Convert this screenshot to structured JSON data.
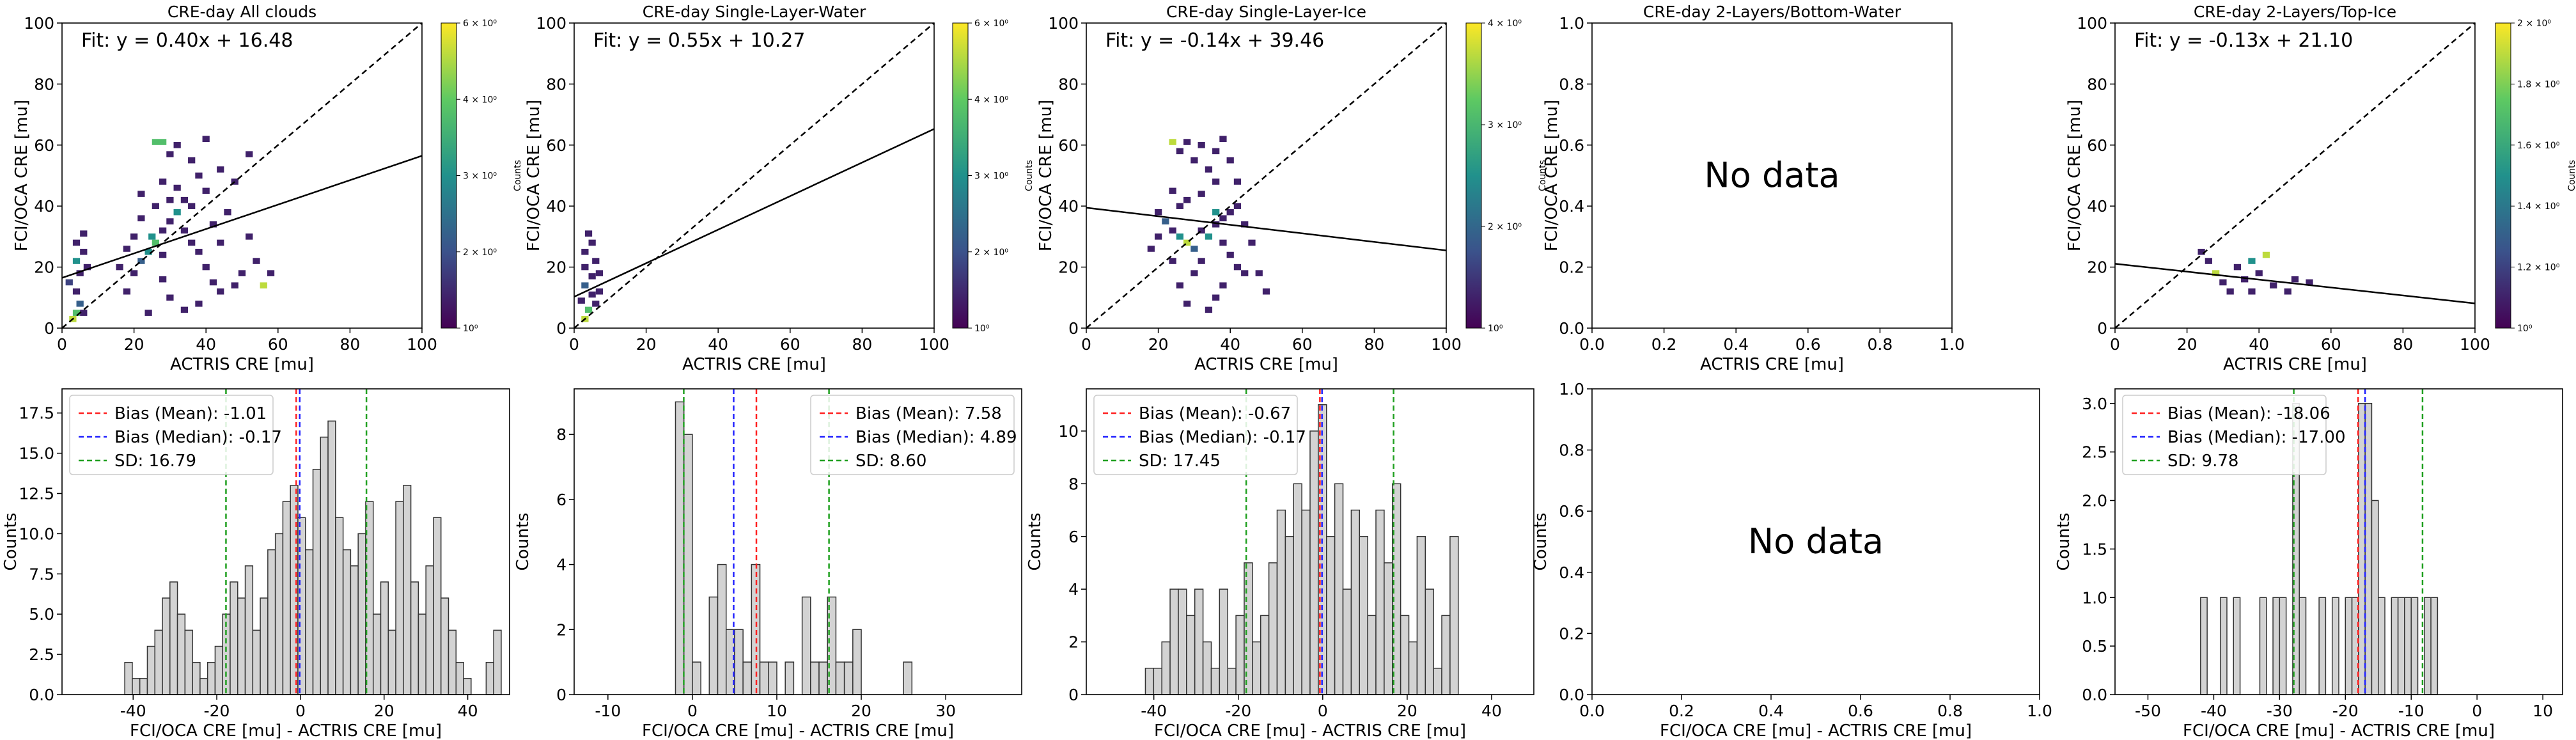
{
  "figure": {
    "top_panels": [
      {
        "title": "CRE-day All clouds",
        "fit": "Fit: y = 0.40x + 16.48",
        "xlabel": "ACTRIS CRE [mu]",
        "ylabel": "FCI/OCA CRE [mu]",
        "colorbar_label": "Counts",
        "colorbar_ticks": [
          "10⁰",
          "2 × 10⁰",
          "3 × 10⁰",
          "4 × 10⁰",
          "6 × 10⁰"
        ],
        "no_data": ""
      },
      {
        "title": "CRE-day Single-Layer-Water",
        "fit": "Fit: y = 0.55x + 10.27",
        "xlabel": "ACTRIS CRE [mu]",
        "ylabel": "FCI/OCA CRE [mu]",
        "colorbar_label": "Counts",
        "colorbar_ticks": [
          "10⁰",
          "2 × 10⁰",
          "3 × 10⁰",
          "4 × 10⁰",
          "6 × 10⁰"
        ],
        "no_data": ""
      },
      {
        "title": "CRE-day Single-Layer-Ice",
        "fit": "Fit: y = -0.14x + 39.46",
        "xlabel": "ACTRIS CRE [mu]",
        "ylabel": "FCI/OCA CRE [mu]",
        "colorbar_label": "Counts",
        "colorbar_ticks": [
          "10⁰",
          "2 × 10⁰",
          "3 × 10⁰",
          "4 × 10⁰"
        ],
        "no_data": ""
      },
      {
        "title": "CRE-day 2-Layers/Bottom-Water",
        "fit": "",
        "xlabel": "ACTRIS CRE [mu]",
        "ylabel": "FCI/OCA CRE [mu]",
        "colorbar_label": "",
        "colorbar_ticks": [],
        "no_data": "No data"
      },
      {
        "title": "CRE-day 2-Layers/Top-Ice",
        "fit": "Fit: y = -0.13x + 21.10",
        "xlabel": "ACTRIS CRE [mu]",
        "ylabel": "FCI/OCA CRE [mu]",
        "colorbar_label": "Counts",
        "colorbar_ticks": [
          "10⁰",
          "1.2 × 10⁰",
          "1.4 × 10⁰",
          "1.6 × 10⁰",
          "1.8 × 10⁰",
          "2 × 10⁰"
        ],
        "no_data": ""
      }
    ],
    "bottom_panels": [
      {
        "xlabel": "FCI/OCA CRE [mu] - ACTRIS CRE [mu]",
        "ylabel": "Counts",
        "legend": [
          "Bias (Mean): -1.01",
          "Bias (Median): -0.17",
          "SD: 16.79"
        ],
        "no_data": ""
      },
      {
        "xlabel": "FCI/OCA CRE [mu] - ACTRIS CRE [mu]",
        "ylabel": "Counts",
        "legend": [
          "Bias (Mean): 7.58",
          "Bias (Median): 4.89",
          "SD: 8.60"
        ],
        "no_data": ""
      },
      {
        "xlabel": "FCI/OCA CRE [mu] - ACTRIS CRE [mu]",
        "ylabel": "Counts",
        "legend": [
          "Bias (Mean): -0.67",
          "Bias (Median): -0.17",
          "SD: 17.45"
        ],
        "no_data": ""
      },
      {
        "xlabel": "FCI/OCA CRE [mu] - ACTRIS CRE [mu]",
        "ylabel": "Counts",
        "legend": [],
        "no_data": "No data"
      },
      {
        "xlabel": "FCI/OCA CRE [mu] - ACTRIS CRE [mu]",
        "ylabel": "Counts",
        "legend": [
          "Bias (Mean): -18.06",
          "Bias (Median): -17.00",
          "SD: 9.78"
        ],
        "no_data": ""
      }
    ]
  },
  "colors": {
    "mean_line": "#ff2020",
    "median_line": "#2020ff",
    "sd_line": "#20a020",
    "bar_fill": "#d3d3d3",
    "bar_edge": "#333333",
    "viridis": [
      "#440154",
      "#3b528b",
      "#21918c",
      "#5ec962",
      "#fde725"
    ]
  },
  "chart_data": [
    {
      "type": "heatmap",
      "title": "CRE-day All clouds",
      "xlim": [
        0,
        100
      ],
      "ylim": [
        0,
        100
      ],
      "xticks": [
        0,
        20,
        40,
        60,
        80,
        100
      ],
      "yticks": [
        0,
        20,
        40,
        60,
        80,
        100
      ],
      "fit": {
        "slope": 0.4,
        "intercept": 16.48
      },
      "one_to_one": true,
      "cells": [
        [
          3,
          3,
          0.9
        ],
        [
          4,
          5,
          0.7
        ],
        [
          5,
          8,
          0.3
        ],
        [
          6,
          5,
          0.1
        ],
        [
          4,
          12,
          0.1
        ],
        [
          2,
          15,
          0.2
        ],
        [
          5,
          18,
          0.1
        ],
        [
          7,
          20,
          0.1
        ],
        [
          4,
          22,
          0.5
        ],
        [
          6,
          25,
          0.1
        ],
        [
          4,
          28,
          0.1
        ],
        [
          6,
          31,
          0.1
        ],
        [
          18,
          12,
          0.1
        ],
        [
          20,
          18,
          0.1
        ],
        [
          22,
          22,
          0.3
        ],
        [
          24,
          25,
          0.5
        ],
        [
          26,
          28,
          0.7
        ],
        [
          28,
          24,
          0.1
        ],
        [
          25,
          30,
          0.5
        ],
        [
          28,
          32,
          0.1
        ],
        [
          30,
          35,
          0.1
        ],
        [
          32,
          38,
          0.5
        ],
        [
          34,
          42,
          0.1
        ],
        [
          36,
          40,
          0.1
        ],
        [
          34,
          32,
          0.1
        ],
        [
          36,
          28,
          0.1
        ],
        [
          38,
          25,
          0.1
        ],
        [
          40,
          20,
          0.1
        ],
        [
          42,
          15,
          0.1
        ],
        [
          44,
          12,
          0.1
        ],
        [
          40,
          45,
          0.1
        ],
        [
          38,
          50,
          0.1
        ],
        [
          36,
          55,
          0.1
        ],
        [
          32,
          60,
          0.1
        ],
        [
          26,
          61,
          0.7
        ],
        [
          28,
          61,
          0.7
        ],
        [
          30,
          57,
          0.1
        ],
        [
          40,
          62,
          0.1
        ],
        [
          44,
          52,
          0.1
        ],
        [
          48,
          48,
          0.1
        ],
        [
          46,
          38,
          0.1
        ],
        [
          42,
          34,
          0.1
        ],
        [
          52,
          30,
          0.1
        ],
        [
          54,
          22,
          0.1
        ],
        [
          50,
          18,
          0.1
        ],
        [
          48,
          14,
          0.1
        ],
        [
          56,
          14,
          0.9
        ],
        [
          58,
          18,
          0.1
        ],
        [
          44,
          28,
          0.1
        ],
        [
          30,
          42,
          0.1
        ],
        [
          32,
          46,
          0.1
        ],
        [
          28,
          48,
          0.1
        ],
        [
          26,
          40,
          0.1
        ],
        [
          22,
          36,
          0.1
        ],
        [
          20,
          30,
          0.1
        ],
        [
          18,
          26,
          0.1
        ],
        [
          16,
          20,
          0.1
        ],
        [
          28,
          16,
          0.1
        ],
        [
          30,
          10,
          0.1
        ],
        [
          34,
          6,
          0.1
        ],
        [
          38,
          8,
          0.1
        ],
        [
          24,
          5,
          0.1
        ],
        [
          52,
          57,
          0.1
        ],
        [
          22,
          44,
          0.1
        ]
      ]
    },
    {
      "type": "heatmap",
      "title": "CRE-day Single-Layer-Water",
      "xlim": [
        0,
        100
      ],
      "ylim": [
        0,
        100
      ],
      "xticks": [
        0,
        20,
        40,
        60,
        80,
        100
      ],
      "yticks": [
        0,
        20,
        40,
        60,
        80,
        100
      ],
      "fit": {
        "slope": 0.55,
        "intercept": 10.27
      },
      "one_to_one": true,
      "cells": [
        [
          3,
          3,
          0.9
        ],
        [
          4,
          6,
          0.7
        ],
        [
          6,
          8,
          0.1
        ],
        [
          5,
          11,
          0.1
        ],
        [
          3,
          14,
          0.3
        ],
        [
          5,
          17,
          0.1
        ],
        [
          3,
          20,
          0.1
        ],
        [
          6,
          22,
          0.1
        ],
        [
          3,
          25,
          0.1
        ],
        [
          5,
          28,
          0.1
        ],
        [
          4,
          31,
          0.1
        ],
        [
          7,
          12,
          0.1
        ],
        [
          2,
          9,
          0.1
        ],
        [
          7,
          18,
          0.1
        ]
      ]
    },
    {
      "type": "heatmap",
      "title": "CRE-day Single-Layer-Ice",
      "xlim": [
        0,
        100
      ],
      "ylim": [
        0,
        100
      ],
      "xticks": [
        0,
        20,
        40,
        60,
        80,
        100
      ],
      "yticks": [
        0,
        20,
        40,
        60,
        80,
        100
      ],
      "fit": {
        "slope": -0.14,
        "intercept": 39.46
      },
      "one_to_one": true,
      "cells": [
        [
          24,
          61,
          0.9
        ],
        [
          26,
          58,
          0.1
        ],
        [
          28,
          61,
          0.1
        ],
        [
          30,
          55,
          0.1
        ],
        [
          32,
          60,
          0.1
        ],
        [
          34,
          52,
          0.1
        ],
        [
          36,
          58,
          0.1
        ],
        [
          38,
          62,
          0.1
        ],
        [
          40,
          55,
          0.1
        ],
        [
          42,
          48,
          0.1
        ],
        [
          36,
          48,
          0.1
        ],
        [
          24,
          45,
          0.1
        ],
        [
          26,
          40,
          0.1
        ],
        [
          20,
          38,
          0.1
        ],
        [
          22,
          35,
          0.3
        ],
        [
          24,
          32,
          0.1
        ],
        [
          26,
          30,
          0.5
        ],
        [
          28,
          28,
          0.9
        ],
        [
          30,
          26,
          0.3
        ],
        [
          32,
          32,
          0.1
        ],
        [
          34,
          30,
          0.5
        ],
        [
          36,
          34,
          0.1
        ],
        [
          38,
          36,
          0.1
        ],
        [
          40,
          38,
          0.1
        ],
        [
          36,
          38,
          0.5
        ],
        [
          38,
          28,
          0.1
        ],
        [
          40,
          24,
          0.1
        ],
        [
          42,
          20,
          0.1
        ],
        [
          44,
          18,
          0.1
        ],
        [
          32,
          22,
          0.1
        ],
        [
          30,
          18,
          0.1
        ],
        [
          26,
          14,
          0.1
        ],
        [
          28,
          8,
          0.1
        ],
        [
          34,
          6,
          0.1
        ],
        [
          36,
          10,
          0.1
        ],
        [
          38,
          14,
          0.1
        ],
        [
          48,
          18,
          0.1
        ],
        [
          50,
          12,
          0.1
        ],
        [
          46,
          28,
          0.1
        ],
        [
          44,
          34,
          0.1
        ],
        [
          28,
          42,
          0.1
        ],
        [
          20,
          30,
          0.1
        ],
        [
          18,
          26,
          0.1
        ],
        [
          24,
          22,
          0.1
        ],
        [
          42,
          40,
          0.1
        ],
        [
          32,
          44,
          0.1
        ]
      ]
    },
    {
      "type": "heatmap",
      "title": "CRE-day 2-Layers/Bottom-Water",
      "xlim": [
        0,
        1
      ],
      "ylim": [
        0,
        1
      ],
      "xticks": [
        0.0,
        0.2,
        0.4,
        0.6,
        0.8,
        1.0
      ],
      "yticks": [
        0.0,
        0.2,
        0.4,
        0.6,
        0.8,
        1.0
      ],
      "no_data": true
    },
    {
      "type": "heatmap",
      "title": "CRE-day 2-Layers/Top-Ice",
      "xlim": [
        0,
        100
      ],
      "ylim": [
        0,
        100
      ],
      "xticks": [
        0,
        20,
        40,
        60,
        80,
        100
      ],
      "yticks": [
        0,
        20,
        40,
        60,
        80,
        100
      ],
      "fit": {
        "slope": -0.13,
        "intercept": 21.1
      },
      "one_to_one": true,
      "cells": [
        [
          24,
          25,
          0.1
        ],
        [
          26,
          22,
          0.1
        ],
        [
          28,
          18,
          0.9
        ],
        [
          30,
          15,
          0.1
        ],
        [
          32,
          12,
          0.1
        ],
        [
          34,
          20,
          0.1
        ],
        [
          36,
          16,
          0.1
        ],
        [
          38,
          22,
          0.5
        ],
        [
          40,
          18,
          0.1
        ],
        [
          42,
          24,
          0.9
        ],
        [
          44,
          14,
          0.1
        ],
        [
          48,
          12,
          0.1
        ],
        [
          50,
          16,
          0.1
        ],
        [
          54,
          15,
          0.1
        ],
        [
          38,
          12,
          0.1
        ]
      ]
    },
    {
      "type": "bar",
      "xlim": [
        -57,
        50
      ],
      "ylim": [
        0,
        19
      ],
      "xticks": [
        -40,
        -20,
        0,
        20,
        40
      ],
      "yticks": [
        0,
        2.5,
        5.0,
        7.5,
        10.0,
        12.5,
        15.0,
        17.5
      ],
      "ytick_labels": [
        "0.0",
        "2.5",
        "5.0",
        "7.5",
        "10.0",
        "12.5",
        "15.0",
        "17.5"
      ],
      "bin_start": -42,
      "bin_width": 1.8,
      "values": [
        2,
        1,
        1,
        3,
        4,
        6,
        7,
        5,
        4,
        2,
        1,
        2,
        3,
        5,
        7,
        6,
        8,
        4,
        6,
        9,
        10,
        12,
        13,
        11,
        9,
        14,
        16,
        17,
        11,
        9,
        8,
        10,
        12,
        5,
        7,
        4,
        12,
        13,
        7,
        5,
        8,
        11,
        6,
        4,
        2,
        1,
        0,
        0,
        2,
        4
      ],
      "lines": {
        "mean": -1.01,
        "median": -0.17,
        "sd_lo": -17.8,
        "sd_hi": 15.78
      }
    },
    {
      "type": "bar",
      "xlim": [
        -14,
        39
      ],
      "ylim": [
        0,
        9.4
      ],
      "xticks": [
        -10,
        0,
        10,
        20,
        30
      ],
      "yticks": [
        0,
        2,
        4,
        6,
        8
      ],
      "ytick_labels": [
        "0",
        "2",
        "4",
        "6",
        "8"
      ],
      "bin_start": -2,
      "bin_width": 1.0,
      "values": [
        9,
        8,
        1,
        0,
        3,
        4,
        2,
        2,
        1,
        4,
        1,
        1,
        0,
        1,
        0,
        3,
        1,
        1,
        3,
        1,
        1,
        2,
        0,
        0,
        0,
        0,
        0,
        1,
        0
      ],
      "lines": {
        "mean": 7.58,
        "median": 4.89,
        "sd_lo": -1.02,
        "sd_hi": 16.18
      }
    },
    {
      "type": "bar",
      "xlim": [
        -56,
        50
      ],
      "ylim": [
        0,
        11.6
      ],
      "xticks": [
        -40,
        -20,
        0,
        20,
        40
      ],
      "yticks": [
        0,
        2,
        4,
        6,
        8,
        10
      ],
      "ytick_labels": [
        "0",
        "2",
        "4",
        "6",
        "8",
        "10"
      ],
      "bin_start": -42,
      "bin_width": 1.95,
      "values": [
        1,
        1,
        2,
        4,
        4,
        3,
        4,
        2,
        1,
        4,
        1,
        3,
        5,
        2,
        3,
        5,
        7,
        6,
        8,
        7,
        10,
        11,
        6,
        8,
        4,
        7,
        6,
        3,
        7,
        5,
        8,
        3,
        2,
        6,
        4,
        1,
        3,
        6
      ],
      "lines": {
        "mean": -0.67,
        "median": -0.17,
        "sd_lo": -18.12,
        "sd_hi": 16.78
      }
    },
    {
      "type": "bar",
      "xlim": [
        0,
        1
      ],
      "ylim": [
        0,
        1
      ],
      "xticks": [
        0.0,
        0.2,
        0.4,
        0.6,
        0.8,
        1.0
      ],
      "yticks": [
        0.0,
        0.2,
        0.4,
        0.6,
        0.8,
        1.0
      ],
      "ytick_labels": [
        "0.0",
        "0.2",
        "0.4",
        "0.6",
        "0.8",
        "1.0"
      ],
      "no_data": true
    },
    {
      "type": "bar",
      "xlim": [
        -55,
        13
      ],
      "ylim": [
        0,
        3.15
      ],
      "xticks": [
        -50,
        -40,
        -30,
        -20,
        -10,
        0,
        10
      ],
      "yticks": [
        0,
        0.5,
        1.0,
        1.5,
        2.0,
        2.5,
        3.0
      ],
      "ytick_labels": [
        "0.0",
        "0.5",
        "1.0",
        "1.5",
        "2.0",
        "2.5",
        "3.0"
      ],
      "bin_start": -42,
      "bin_width": 1.0,
      "values": [
        1,
        0,
        0,
        1,
        0,
        1,
        0,
        0,
        0,
        1,
        0,
        1,
        1,
        0,
        3,
        1,
        0,
        0,
        1,
        0,
        1,
        0,
        1,
        1,
        3,
        3,
        2,
        1,
        0,
        1,
        1,
        1,
        1,
        0,
        1,
        1
      ],
      "lines": {
        "mean": -18.06,
        "median": -17.0,
        "sd_lo": -27.84,
        "sd_hi": -8.28
      }
    }
  ]
}
